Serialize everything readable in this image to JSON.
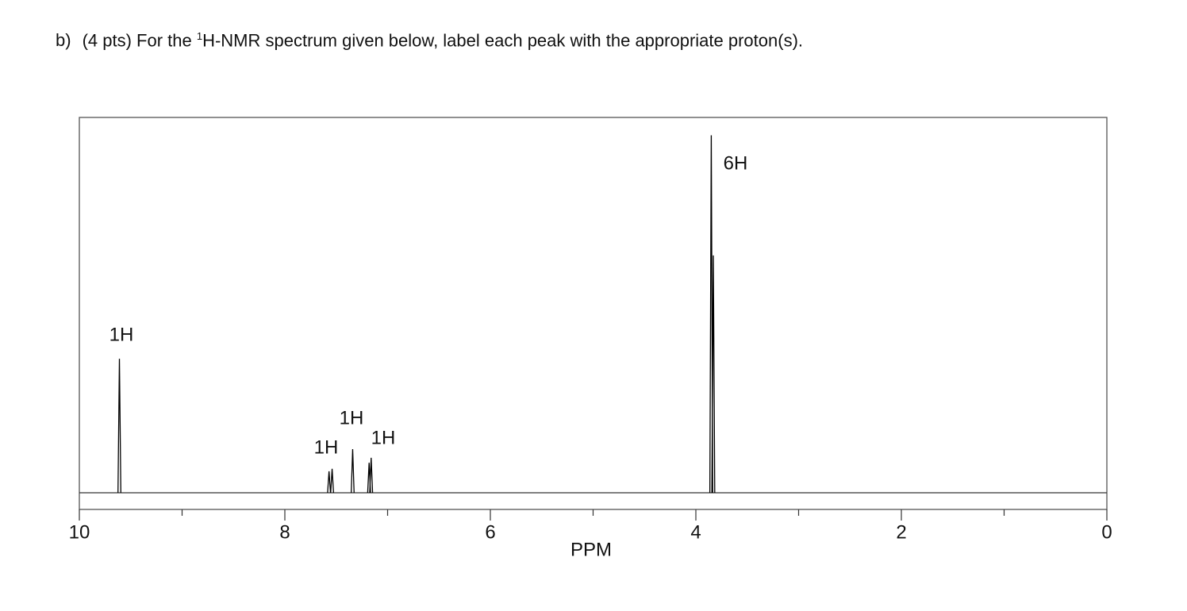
{
  "chart_data": {
    "type": "spectrum",
    "title": [
      "b)",
      "(4 pts) For the ",
      "1",
      "H-NMR spectrum given below, label each peak with the appropriate proton(s)."
    ],
    "x_label": "PPM",
    "x": [
      9.61,
      7.57,
      7.54,
      7.34,
      7.18,
      7.16,
      3.85,
      3.83
    ],
    "values": [
      37.5,
      6,
      6.7,
      12.2,
      8.4,
      9.8,
      100,
      66.4
    ],
    "color": "#000000",
    "xlim": [
      10,
      0
    ],
    "xticks": [
      10,
      8,
      6,
      4,
      2,
      0
    ],
    "xminor": [
      9,
      7,
      5,
      3,
      1
    ],
    "ylim": [
      0,
      105
    ],
    "annotations": [
      "1H",
      "1H",
      "1H",
      "1H",
      "6H"
    ]
  }
}
